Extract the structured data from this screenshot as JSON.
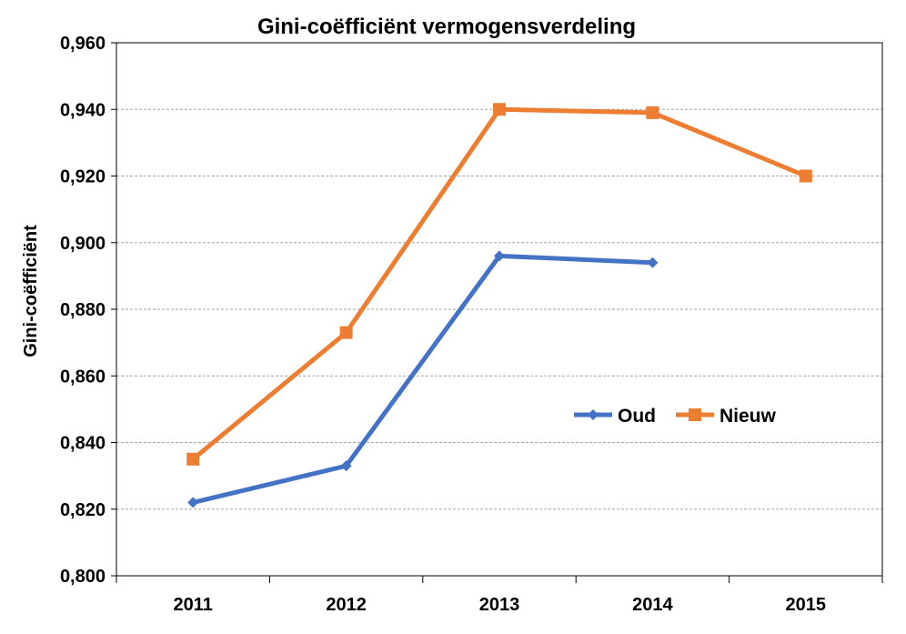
{
  "chart_data": {
    "type": "line",
    "title": "Gini-coëfficiënt vermogensverdeling",
    "xlabel": "",
    "ylabel": "Gini-coëfficiënt",
    "categories": [
      "2011",
      "2012",
      "2013",
      "2014",
      "2015"
    ],
    "ylim": [
      0.8,
      0.96
    ],
    "yticks": [
      "0,800",
      "0,820",
      "0,840",
      "0,860",
      "0,880",
      "0,900",
      "0,920",
      "0,940",
      "0,960"
    ],
    "grid": true,
    "legend_position": "inside-right",
    "series": [
      {
        "name": "Oud",
        "values": [
          0.822,
          0.833,
          0.896,
          0.894,
          null
        ],
        "color": "#4472C4",
        "marker": "diamond"
      },
      {
        "name": "Nieuw",
        "values": [
          0.835,
          0.873,
          0.94,
          0.939,
          0.92
        ],
        "color": "#ED7D31",
        "marker": "square"
      }
    ]
  }
}
